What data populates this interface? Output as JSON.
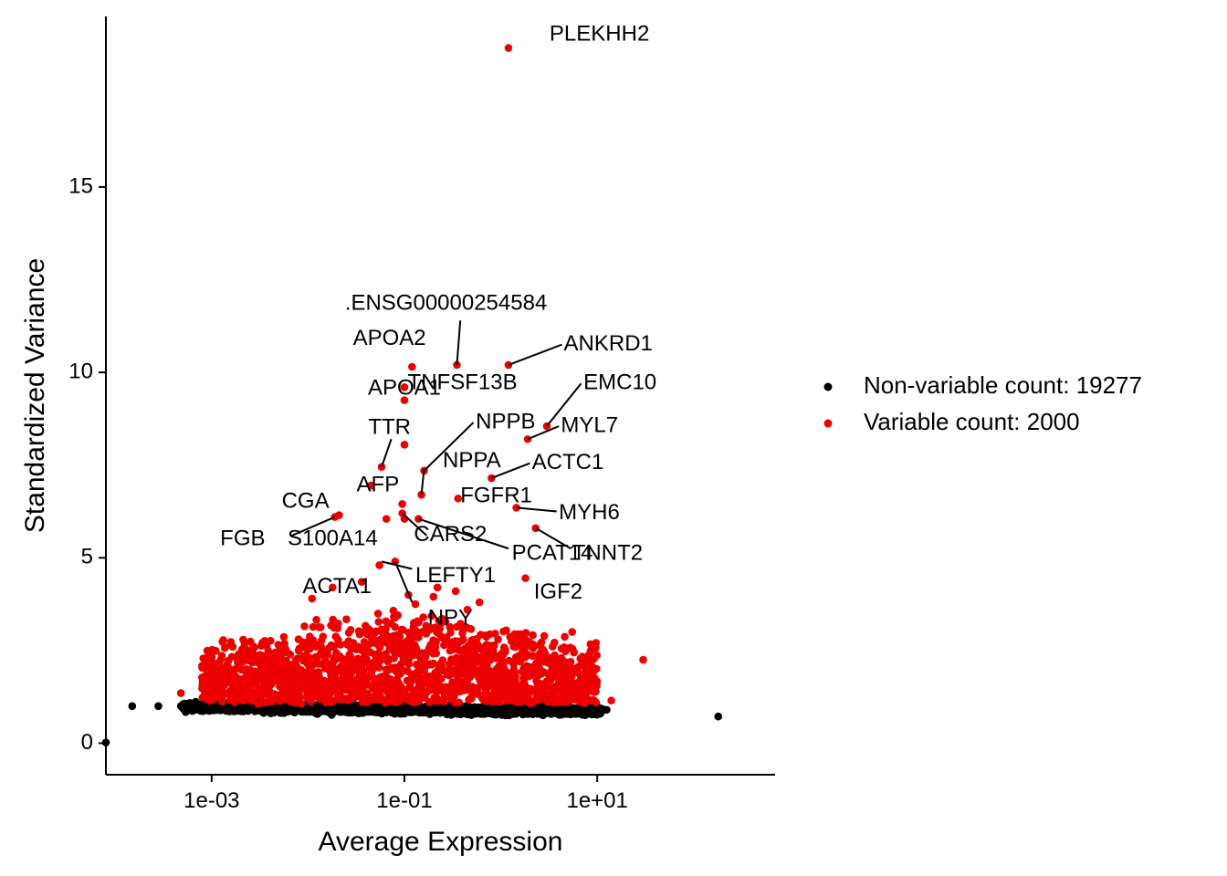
{
  "chart_data": {
    "type": "scatter",
    "title": "",
    "xlabel": "Average Expression",
    "ylabel": "Standardized Variance",
    "x_scale": "log10",
    "xlim": [
      8e-05,
      700
    ],
    "ylim": [
      -0.85,
      19.6
    ],
    "x_ticks": [
      0.001,
      0.1,
      10
    ],
    "x_tick_labels": [
      "1e-03",
      "1e-01",
      "1e+01"
    ],
    "y_ticks": [
      0,
      5,
      10,
      15
    ],
    "y_tick_labels": [
      "0",
      "5",
      "10",
      "15"
    ],
    "grid": false,
    "legend_position": "right",
    "colors": {
      "non_variable": "#000000",
      "variable": "#ee0000"
    },
    "series": [
      {
        "name": "Non-variable count: 19277",
        "color": "#000000"
      },
      {
        "name": "Variable count: 2000",
        "color": "#ee0000"
      }
    ],
    "outliers_nonvariable": [
      {
        "x": 8e-05,
        "y": 0.02
      },
      {
        "x": 0.00015,
        "y": 1.0
      },
      {
        "x": 0.00028,
        "y": 1.0
      },
      {
        "x": 0.00048,
        "y": 1.0
      },
      {
        "x": 12.5,
        "y": 0.9
      },
      {
        "x": 180,
        "y": 0.72
      }
    ],
    "labeled_genes": [
      {
        "gene": "PLEKHH2",
        "x": 1.2,
        "y": 18.75
      },
      {
        "gene": ".ENSG00000254584",
        "x": 0.35,
        "y": 10.2
      },
      {
        "gene": "APOA2",
        "x": 0.12,
        "y": 10.15
      },
      {
        "gene": "ANKRD1",
        "x": 1.2,
        "y": 10.2
      },
      {
        "gene": "TNFSF13B",
        "x": 0.1,
        "y": 9.25
      },
      {
        "gene": "APOA1",
        "x": 0.1,
        "y": 9.6
      },
      {
        "gene": "EMC10",
        "x": 3.0,
        "y": 8.55
      },
      {
        "gene": "MYL7",
        "x": 1.9,
        "y": 8.2
      },
      {
        "gene": "NPPB",
        "x": 0.16,
        "y": 7.35
      },
      {
        "gene": "TTR",
        "x": 0.058,
        "y": 7.45
      },
      {
        "gene": "ACTC1",
        "x": 0.8,
        "y": 7.15
      },
      {
        "gene": "NPPA",
        "x": 0.15,
        "y": 6.7
      },
      {
        "gene": "AFP",
        "x": 0.045,
        "y": 6.95
      },
      {
        "gene": "FGFR1",
        "x": 0.36,
        "y": 6.6
      },
      {
        "gene": "MYH6",
        "x": 1.45,
        "y": 6.35
      },
      {
        "gene": "CGA",
        "x": 0.021,
        "y": 6.15
      },
      {
        "gene": "FGB",
        "x": 0.019,
        "y": 6.1
      },
      {
        "gene": "S100A14",
        "x": 0.095,
        "y": 6.2
      },
      {
        "gene": "CARS2",
        "x": 0.14,
        "y": 6.05
      },
      {
        "gene": "TNNT2",
        "x": 2.3,
        "y": 5.8
      },
      {
        "gene": "PCAT14",
        "x": 0.095,
        "y": 6.45
      },
      {
        "gene": "LEFTY1",
        "x": 0.08,
        "y": 4.9
      },
      {
        "gene": "ACTA1",
        "x": 0.055,
        "y": 4.8
      },
      {
        "gene": "IGF2",
        "x": 1.8,
        "y": 4.45
      },
      {
        "gene": "NPY",
        "x": 0.11,
        "y": 4.0
      }
    ],
    "extra_variable_points": [
      {
        "x": 0.1,
        "y": 8.05
      },
      {
        "x": 0.1,
        "y": 6.05
      },
      {
        "x": 0.065,
        "y": 6.05
      },
      {
        "x": 0.036,
        "y": 4.35
      },
      {
        "x": 0.018,
        "y": 4.2
      },
      {
        "x": 0.011,
        "y": 3.9
      },
      {
        "x": 0.22,
        "y": 4.2
      },
      {
        "x": 0.34,
        "y": 4.1
      },
      {
        "x": 0.2,
        "y": 3.95
      },
      {
        "x": 0.6,
        "y": 3.8
      },
      {
        "x": 0.13,
        "y": 3.75
      },
      {
        "x": 0.45,
        "y": 3.6
      },
      {
        "x": 5.5,
        "y": 3.0
      },
      {
        "x": 30,
        "y": 2.25
      },
      {
        "x": 4.5,
        "y": 2.1
      },
      {
        "x": 3.0,
        "y": 2.25
      },
      {
        "x": 14,
        "y": 1.15
      },
      {
        "x": 0.00048,
        "y": 1.35
      }
    ],
    "gene_labels": [
      {
        "gene": "PLEKHH2",
        "lx": 3.2,
        "ly": 19.1,
        "anchor": "start",
        "line": false
      },
      {
        "gene": ".ENSG00000254584",
        "lx": 0.27,
        "ly": 11.85,
        "anchor": "middle",
        "line": true,
        "ax": 0.35,
        "ay": 10.2,
        "bx": 0.38,
        "by": 11.4
      },
      {
        "gene": "APOA2",
        "lx": 0.07,
        "ly": 10.9,
        "anchor": "middle",
        "line": false
      },
      {
        "gene": "ANKRD1",
        "lx": 4.5,
        "ly": 10.75,
        "anchor": "start",
        "line": true,
        "ax": 1.2,
        "ay": 10.2,
        "bx": 4.3,
        "by": 10.75
      },
      {
        "gene": "TNFSF13B",
        "lx": 0.4,
        "ly": 9.7,
        "anchor": "middle",
        "line": false
      },
      {
        "gene": "APOA1",
        "lx": 0.1,
        "ly": 9.55,
        "anchor": "middle",
        "line": false
      },
      {
        "gene": "EMC10",
        "lx": 7.2,
        "ly": 9.7,
        "anchor": "start",
        "line": true,
        "ax": 3.0,
        "ay": 8.55,
        "bx": 6.8,
        "by": 9.7
      },
      {
        "gene": "MYL7",
        "lx": 4.2,
        "ly": 8.55,
        "anchor": "start",
        "line": true,
        "ax": 1.9,
        "ay": 8.2,
        "bx": 4.0,
        "by": 8.55
      },
      {
        "gene": "NPPB",
        "lx": 0.55,
        "ly": 8.65,
        "anchor": "start",
        "line": true,
        "ax": 0.16,
        "ay": 7.35,
        "bx": 0.52,
        "by": 8.65
      },
      {
        "gene": "TTR",
        "lx": 0.07,
        "ly": 8.5,
        "anchor": "middle",
        "line": true,
        "ax": 0.058,
        "ay": 7.45,
        "bx": 0.073,
        "by": 8.2
      },
      {
        "gene": "ACTC1",
        "lx": 2.1,
        "ly": 7.55,
        "anchor": "start",
        "line": true,
        "ax": 0.8,
        "ay": 7.15,
        "bx": 2.0,
        "by": 7.55
      },
      {
        "gene": "NPPA",
        "lx": 0.5,
        "ly": 7.6,
        "anchor": "middle",
        "line": true,
        "ax": 0.15,
        "ay": 6.7,
        "bx": 0.16,
        "by": 7.4
      },
      {
        "gene": "AFP",
        "lx": 0.053,
        "ly": 6.95,
        "anchor": "middle",
        "line": false
      },
      {
        "gene": "FGFR1",
        "lx": 0.38,
        "ly": 6.65,
        "anchor": "start",
        "line": false
      },
      {
        "gene": "MYH6",
        "lx": 4.0,
        "ly": 6.2,
        "anchor": "start",
        "line": true,
        "ax": 1.45,
        "ay": 6.35,
        "bx": 3.8,
        "by": 6.25
      },
      {
        "gene": "CGA",
        "lx": 0.0094,
        "ly": 6.5,
        "anchor": "middle",
        "line": false
      },
      {
        "gene": "FGB",
        "lx": 0.0021,
        "ly": 5.5,
        "anchor": "middle",
        "line": true,
        "ax": 0.019,
        "ay": 6.1,
        "bx": 0.0068,
        "by": 5.6
      },
      {
        "gene": "S100A14",
        "lx": 0.018,
        "ly": 5.5,
        "anchor": "middle",
        "line": false
      },
      {
        "gene": "CARS2",
        "lx": 0.3,
        "ly": 5.6,
        "anchor": "middle",
        "line": true,
        "ax": 0.095,
        "ay": 6.2,
        "bx": 0.17,
        "by": 5.6
      },
      {
        "gene": "TNNT2",
        "lx": 5.5,
        "ly": 5.1,
        "anchor": "start",
        "line": true,
        "ax": 2.3,
        "ay": 5.8,
        "bx": 5.3,
        "by": 5.25
      },
      {
        "gene": "PCAT14",
        "lx": 1.3,
        "ly": 5.1,
        "anchor": "start",
        "line": true,
        "ax": 0.14,
        "ay": 6.05,
        "bx": 1.2,
        "by": 5.25
      },
      {
        "gene": "LEFTY1",
        "lx": 0.13,
        "ly": 4.5,
        "anchor": "start",
        "line": true,
        "ax": 0.058,
        "ay": 4.9,
        "bx": 0.12,
        "by": 4.7
      },
      {
        "gene": "ACTA1",
        "lx": 0.02,
        "ly": 4.2,
        "anchor": "middle",
        "line": false
      },
      {
        "gene": "IGF2",
        "lx": 2.2,
        "ly": 4.05,
        "anchor": "start",
        "line": false
      },
      {
        "gene": "NPY",
        "lx": 0.3,
        "ly": 3.35,
        "anchor": "middle",
        "line": true,
        "ax": 0.08,
        "ay": 4.9,
        "bx": 0.12,
        "by": 3.8
      }
    ]
  }
}
